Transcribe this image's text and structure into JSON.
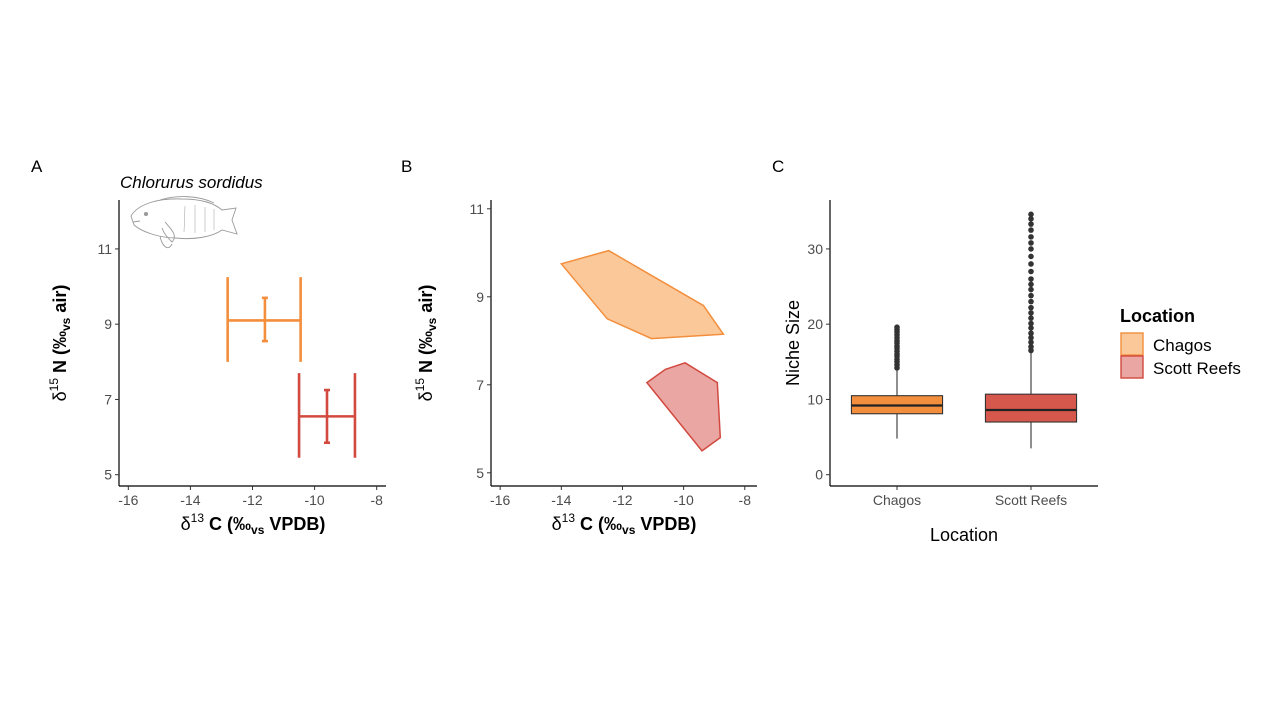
{
  "panels": {
    "a": "A",
    "b": "B",
    "c": "C"
  },
  "species": "Chlorurus sordidus",
  "colors": {
    "chagos": "#f28e3c",
    "chagos_fill": "#fbc899",
    "scott": "#d2493f",
    "scott_fill": "#eaa6a3",
    "scott_box": "#d6584c",
    "axis": "#000000",
    "outlier": "#333333"
  },
  "axes": {
    "d13c": {
      "delta": "δ",
      "sup": "13",
      "elem": " C (‰",
      "vs": "vs",
      "tail": " VPDB)"
    },
    "d15n": {
      "delta": "δ",
      "sup": "15",
      "elem": " N (‰",
      "vs": "vs",
      "tail": " air)"
    },
    "niche_y": "Niche Size",
    "loc_x": "Location"
  },
  "legend": {
    "title": "Location",
    "items": [
      "Chagos",
      "Scott Reefs"
    ]
  },
  "chart_data": [
    {
      "type": "scatter",
      "panel": "A",
      "title": "Chlorurus sordidus",
      "xlim": [
        -16.3,
        -7.7
      ],
      "ylim": [
        4.7,
        12.3
      ],
      "xticks": [
        -16,
        -14,
        -12,
        -10,
        -8
      ],
      "yticks": [
        5,
        7,
        9,
        11
      ],
      "series": [
        {
          "name": "Chagos",
          "x": -11.6,
          "y": 9.1,
          "xsd": [
            -12.8,
            -10.45
          ],
          "ysd": [
            8.0,
            10.25
          ],
          "xci": [
            -11.6,
            -11.6
          ],
          "yci": [
            8.55,
            9.7
          ]
        },
        {
          "name": "Scott Reefs",
          "x": -9.6,
          "y": 6.55,
          "xsd": [
            -10.5,
            -8.7
          ],
          "ysd": [
            5.45,
            7.7
          ],
          "xci": [
            -9.6,
            -9.6
          ],
          "yci": [
            5.85,
            7.25
          ]
        }
      ]
    },
    {
      "type": "area",
      "panel": "B",
      "xlim": [
        -16.3,
        -7.6
      ],
      "ylim": [
        4.7,
        11.2
      ],
      "xticks": [
        -16,
        -14,
        -12,
        -10,
        -8
      ],
      "yticks": [
        5,
        7,
        9,
        11
      ],
      "series": [
        {
          "name": "Chagos",
          "polygon": [
            [
              -14.0,
              9.75
            ],
            [
              -12.45,
              10.05
            ],
            [
              -9.35,
              8.8
            ],
            [
              -8.7,
              8.15
            ],
            [
              -11.05,
              8.05
            ],
            [
              -12.5,
              8.5
            ]
          ]
        },
        {
          "name": "Scott Reefs",
          "polygon": [
            [
              -11.2,
              7.05
            ],
            [
              -10.6,
              7.35
            ],
            [
              -9.95,
              7.5
            ],
            [
              -8.9,
              7.05
            ],
            [
              -8.8,
              5.8
            ],
            [
              -9.4,
              5.5
            ]
          ]
        }
      ]
    },
    {
      "type": "box",
      "panel": "C",
      "ylim": [
        -1.5,
        36.5
      ],
      "yticks": [
        0,
        10,
        20,
        30
      ],
      "categories": [
        "Chagos",
        "Scott Reefs"
      ],
      "boxes": [
        {
          "name": "Chagos",
          "whisker_low": 4.8,
          "q1": 8.1,
          "median": 9.2,
          "q3": 10.5,
          "whisker_high": 14.0,
          "outliers": [
            14.2,
            14.6,
            15.0,
            15.3,
            15.7,
            16.0,
            16.4,
            16.8,
            17.1,
            17.5,
            17.8,
            18.2,
            18.6,
            19.0,
            19.3,
            19.6
          ]
        },
        {
          "name": "Scott Reefs",
          "whisker_low": 3.5,
          "q1": 7.0,
          "median": 8.6,
          "q3": 10.7,
          "whisker_high": 16.2,
          "outliers": [
            16.5,
            17.0,
            17.6,
            18.2,
            18.8,
            19.5,
            20.1,
            20.8,
            21.5,
            22.2,
            23.0,
            23.8,
            24.6,
            25.3,
            26.0,
            27.0,
            28.0,
            29.0,
            30.0,
            30.8,
            31.6,
            32.5,
            33.3,
            34.0,
            34.6
          ]
        }
      ],
      "xlabel": "Location",
      "ylabel": "Niche Size"
    }
  ]
}
